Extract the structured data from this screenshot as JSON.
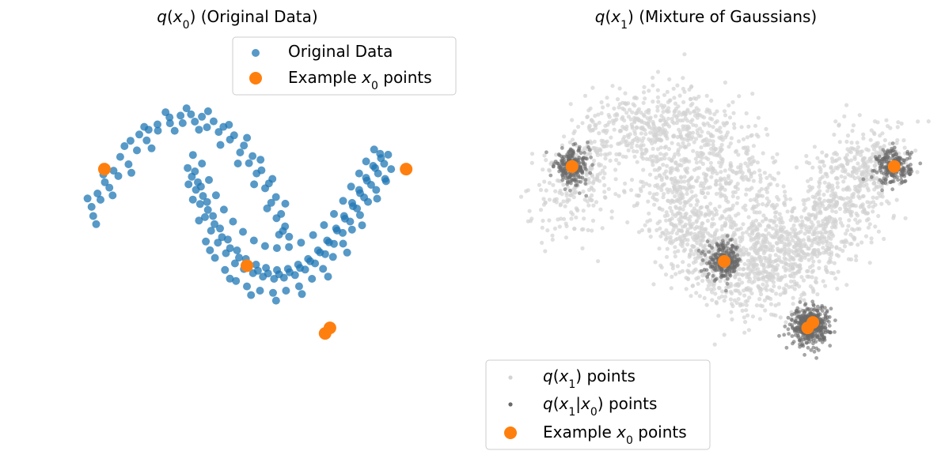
{
  "colors": {
    "original": "#1f77b4",
    "example": "#ff7f0e",
    "mixture": "#d3d3d3",
    "conditional": "#696969"
  },
  "chart_data": [
    {
      "type": "scatter",
      "title_parts": [
        "q(x",
        "0",
        ") (Original Data)"
      ],
      "axes": "off",
      "grid": false,
      "legend_position": "top-right",
      "xlim": [
        -1.2,
        2.2
      ],
      "ylim": [
        -1.9,
        1.75
      ],
      "legend": [
        {
          "label": [
            "Original Data"
          ],
          "marker": "circle-blue"
        },
        {
          "label": [
            "Example x",
            "0",
            " points"
          ],
          "marker": "circle-orange"
        }
      ],
      "series": [
        {
          "name": "Original Data",
          "points": [
            [
              -0.981,
              0.146
            ],
            [
              -0.922,
              0.268
            ],
            [
              -0.848,
              0.372
            ],
            [
              -0.761,
              0.477
            ],
            [
              -0.695,
              0.604
            ],
            [
              -0.592,
              0.751
            ],
            [
              -0.504,
              0.808
            ],
            [
              -0.411,
              0.852
            ],
            [
              -0.322,
              0.901
            ],
            [
              -0.202,
              0.965
            ],
            [
              -0.092,
              0.981
            ],
            [
              0.012,
              0.993
            ],
            [
              0.121,
              0.971
            ],
            [
              0.238,
              0.929
            ],
            [
              0.336,
              0.878
            ],
            [
              0.443,
              0.801
            ],
            [
              0.541,
              0.708
            ],
            [
              0.627,
              0.611
            ],
            [
              0.717,
              0.481
            ],
            [
              0.791,
              0.361
            ],
            [
              0.861,
              0.236
            ],
            [
              0.913,
              0.081
            ],
            [
              0.952,
              -0.032
            ],
            [
              0.993,
              -0.128
            ],
            [
              -0.964,
              0.062
            ],
            [
              -0.892,
              0.211
            ],
            [
              -0.803,
              0.322
            ],
            [
              -0.714,
              0.428
            ],
            [
              -0.612,
              0.536
            ],
            [
              -0.528,
              0.663
            ],
            [
              -0.431,
              0.754
            ],
            [
              -0.318,
              0.843
            ],
            [
              -0.197,
              0.911
            ],
            [
              -0.071,
              0.912
            ],
            [
              0.051,
              0.926
            ],
            [
              0.172,
              0.875
            ],
            [
              0.289,
              0.831
            ],
            [
              0.402,
              0.762
            ],
            [
              0.503,
              0.644
            ],
            [
              0.592,
              0.546
            ],
            [
              0.668,
              0.452
            ],
            [
              0.753,
              0.316
            ],
            [
              0.814,
              0.184
            ],
            [
              0.867,
              0.043
            ],
            [
              0.931,
              -0.074
            ],
            [
              -1.021,
              0.223
            ],
            [
              -0.863,
              0.442
            ],
            [
              -0.652,
              0.702
            ],
            [
              -0.455,
              0.878
            ],
            [
              -0.242,
              1.012
            ],
            [
              -0.032,
              1.048
            ],
            [
              0.183,
              1.021
            ],
            [
              0.392,
              0.897
            ],
            [
              0.572,
              0.778
            ],
            [
              0.707,
              0.578
            ],
            [
              0.826,
              0.402
            ],
            [
              0.955,
              0.175
            ],
            [
              -0.935,
              -0.012
            ],
            [
              -0.771,
              0.251
            ],
            [
              -0.583,
              0.458
            ],
            [
              -0.382,
              0.682
            ],
            [
              -0.151,
              0.842
            ],
            [
              0.092,
              0.852
            ],
            [
              0.306,
              0.713
            ],
            [
              0.481,
              0.543
            ],
            [
              0.643,
              0.352
            ],
            [
              0.773,
              0.132
            ],
            [
              0.892,
              -0.108
            ],
            [
              0.021,
              0.422
            ],
            [
              0.062,
              0.302
            ],
            [
              0.103,
              0.172
            ],
            [
              0.152,
              0.052
            ],
            [
              0.213,
              -0.072
            ],
            [
              0.281,
              -0.181
            ],
            [
              0.362,
              -0.278
            ],
            [
              0.452,
              -0.371
            ],
            [
              0.541,
              -0.423
            ],
            [
              0.632,
              -0.461
            ],
            [
              0.731,
              -0.492
            ],
            [
              0.842,
              -0.512
            ],
            [
              0.941,
              -0.502
            ],
            [
              1.052,
              -0.478
            ],
            [
              1.153,
              -0.428
            ],
            [
              1.252,
              -0.371
            ],
            [
              1.353,
              -0.286
            ],
            [
              1.441,
              -0.192
            ],
            [
              1.528,
              -0.092
            ],
            [
              1.602,
              0.012
            ],
            [
              1.671,
              0.131
            ],
            [
              1.742,
              0.232
            ],
            [
              1.812,
              0.348
            ],
            [
              1.881,
              0.452
            ],
            [
              1.942,
              0.541
            ],
            [
              1.982,
              0.623
            ],
            [
              0.081,
              0.372
            ],
            [
              0.132,
              0.246
            ],
            [
              0.181,
              0.118
            ],
            [
              0.247,
              -0.012
            ],
            [
              0.322,
              -0.131
            ],
            [
              0.403,
              -0.232
            ],
            [
              0.492,
              -0.318
            ],
            [
              0.583,
              -0.392
            ],
            [
              0.681,
              -0.438
            ],
            [
              0.782,
              -0.463
            ],
            [
              0.892,
              -0.471
            ],
            [
              0.998,
              -0.452
            ],
            [
              1.102,
              -0.413
            ],
            [
              1.204,
              -0.352
            ],
            [
              1.302,
              -0.271
            ],
            [
              1.391,
              -0.178
            ],
            [
              1.472,
              -0.071
            ],
            [
              1.551,
              0.038
            ],
            [
              1.631,
              0.152
            ],
            [
              1.702,
              0.271
            ],
            [
              1.771,
              0.386
            ],
            [
              1.852,
              0.502
            ],
            [
              1.911,
              0.592
            ],
            [
              -0.021,
              0.502
            ],
            [
              0.031,
              0.213
            ],
            [
              0.092,
              0.021
            ],
            [
              0.161,
              -0.171
            ],
            [
              0.252,
              -0.321
            ],
            [
              0.352,
              -0.431
            ],
            [
              0.462,
              -0.532
            ],
            [
              0.571,
              -0.582
            ],
            [
              0.702,
              -0.621
            ],
            [
              0.832,
              -0.641
            ],
            [
              0.962,
              -0.621
            ],
            [
              1.092,
              -0.581
            ],
            [
              1.221,
              -0.512
            ],
            [
              1.332,
              -0.421
            ],
            [
              1.431,
              -0.312
            ],
            [
              1.532,
              -0.191
            ],
            [
              1.621,
              -0.062
            ],
            [
              1.701,
              0.071
            ],
            [
              1.781,
              0.192
            ],
            [
              1.862,
              0.301
            ],
            [
              1.952,
              0.402
            ],
            [
              2.012,
              0.492
            ],
            [
              0.122,
              0.542
            ],
            [
              0.192,
              0.392
            ],
            [
              0.262,
              0.252
            ],
            [
              0.341,
              0.121
            ],
            [
              0.432,
              0.012
            ],
            [
              0.532,
              -0.082
            ],
            [
              0.641,
              -0.162
            ],
            [
              0.752,
              -0.212
            ],
            [
              0.871,
              -0.231
            ],
            [
              0.991,
              -0.221
            ],
            [
              1.112,
              -0.181
            ],
            [
              1.232,
              -0.112
            ],
            [
              1.341,
              -0.021
            ],
            [
              1.441,
              0.081
            ],
            [
              1.532,
              0.201
            ],
            [
              1.612,
              0.331
            ],
            [
              1.692,
              0.452
            ],
            [
              1.762,
              0.562
            ],
            [
              1.842,
              0.671
            ],
            [
              0.032,
              0.621
            ],
            [
              -0.012,
              0.352
            ],
            [
              0.202,
              -0.251
            ],
            [
              0.401,
              -0.511
            ],
            [
              0.612,
              -0.661
            ],
            [
              0.862,
              -0.712
            ],
            [
              1.121,
              -0.652
            ],
            [
              1.382,
              -0.492
            ],
            [
              1.572,
              -0.272
            ],
            [
              1.722,
              -0.022
            ],
            [
              1.872,
              0.221
            ],
            [
              1.961,
              0.381
            ],
            [
              0.052,
              0.471
            ],
            [
              0.112,
              0.332
            ],
            [
              0.173,
              0.191
            ],
            [
              0.232,
              0.062
            ],
            [
              0.302,
              -0.052
            ],
            [
              0.381,
              -0.152
            ],
            [
              0.472,
              -0.252
            ],
            [
              0.561,
              -0.331
            ],
            [
              0.662,
              -0.382
            ],
            [
              0.762,
              -0.412
            ],
            [
              0.872,
              -0.432
            ],
            [
              0.981,
              -0.421
            ],
            [
              1.083,
              -0.382
            ],
            [
              1.182,
              -0.331
            ],
            [
              1.281,
              -0.252
            ],
            [
              1.372,
              -0.162
            ],
            [
              1.462,
              -0.052
            ],
            [
              1.542,
              0.062
            ],
            [
              1.622,
              0.182
            ],
            [
              1.692,
              0.301
            ],
            [
              1.761,
              0.412
            ],
            [
              1.832,
              0.521
            ],
            [
              1.902,
              0.632
            ]
          ]
        },
        {
          "name": "Example x0 points",
          "points": [
            [
              -0.853,
              0.492
            ],
            [
              0.571,
              -0.392
            ],
            [
              1.352,
              -1.012
            ],
            [
              1.401,
              -0.961
            ],
            [
              2.162,
              0.492
            ]
          ]
        }
      ]
    },
    {
      "type": "scatter",
      "title_parts": [
        "q(x",
        "1",
        ") (Mixture of Gaussians)"
      ],
      "axes": "off",
      "grid": false,
      "legend_position": "bottom-left",
      "xlim": [
        -1.6,
        2.4
      ],
      "ylim": [
        -2.3,
        1.75
      ],
      "legend": [
        {
          "label": [
            "q(x",
            "1",
            ") points"
          ],
          "marker": "dot-lightgray"
        },
        {
          "label": [
            "q(x",
            "1",
            "|x",
            "0",
            ") points"
          ],
          "marker": "dot-gray"
        },
        {
          "label": [
            "Example x",
            "0",
            " points"
          ],
          "marker": "circle-orange"
        }
      ],
      "series": [
        {
          "name": "q(x1) points",
          "distribution": "Gaussian noise added to every original data point",
          "noise_sd": 0.18
        },
        {
          "name": "q(x1|x0) points",
          "distribution": "Gaussian noise added to each example x0 point",
          "noise_sd": 0.08,
          "centers": [
            [
              -0.853,
              0.492
            ],
            [
              0.571,
              -0.392
            ],
            [
              1.352,
              -1.012
            ],
            [
              1.401,
              -0.961
            ],
            [
              2.162,
              0.492
            ]
          ]
        },
        {
          "name": "Example x0 points",
          "points": [
            [
              -0.853,
              0.492
            ],
            [
              0.571,
              -0.392
            ],
            [
              1.352,
              -1.012
            ],
            [
              1.401,
              -0.961
            ],
            [
              2.162,
              0.492
            ]
          ]
        }
      ]
    }
  ]
}
